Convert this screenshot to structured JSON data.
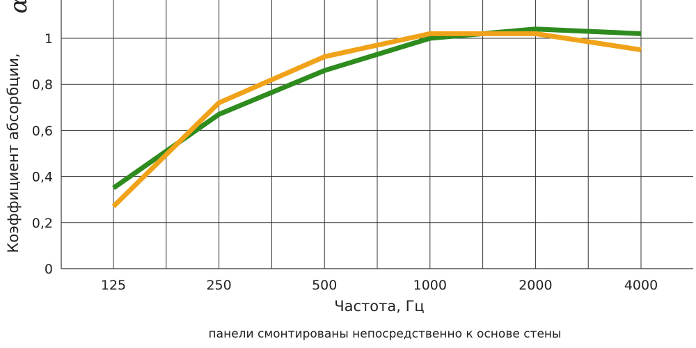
{
  "chart_data": {
    "type": "line",
    "categories": [
      "125",
      "250",
      "500",
      "1000",
      "2000",
      "4000"
    ],
    "xlabel": "Частота, Гц",
    "ylabel": "Коэффициент абсорбции,",
    "ylabel_symbol": "α",
    "ylim": [
      0,
      1.1
    ],
    "yticks": [
      "0",
      "0,2",
      "0,4",
      "0,6",
      "0,8",
      "1"
    ],
    "ytick_values": [
      0,
      0.2,
      0.4,
      0.6,
      0.8,
      1.0
    ],
    "grid": true,
    "series": [
      {
        "values": [
          0.35,
          0.67,
          0.86,
          1.0,
          1.04,
          1.02
        ],
        "color": "#2e8b1e"
      },
      {
        "values": [
          0.27,
          0.72,
          0.92,
          1.02,
          1.02,
          0.95
        ],
        "color": "#f0a31a"
      }
    ],
    "annotation": "панели смонтированы непосредственно к основе стены"
  }
}
